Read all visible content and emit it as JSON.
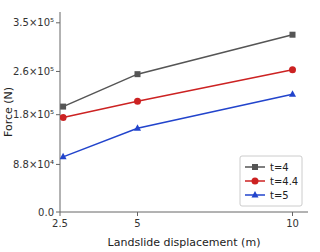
{
  "chart_data": {
    "type": "line",
    "x": [
      2.6,
      5,
      10
    ],
    "series": [
      {
        "name": "t=4",
        "color": "#555555",
        "marker": "square",
        "values": [
          195000,
          255000,
          328000
        ]
      },
      {
        "name": "t=4.4",
        "color": "#cc2222",
        "marker": "circle",
        "values": [
          175000,
          205000,
          263000
        ]
      },
      {
        "name": "t=5",
        "color": "#2244cc",
        "marker": "triangle",
        "values": [
          102000,
          155000,
          218000
        ]
      }
    ],
    "xlabel": "Landslide displacement (m)",
    "ylabel": "Force (N)",
    "xlim": [
      2.5,
      10.5
    ],
    "ylim": [
      0.0,
      370000
    ],
    "xticks": [
      2.5,
      5,
      10
    ],
    "yticks": [
      {
        "value": 0,
        "label": "0.0"
      },
      {
        "value": 88000,
        "label": "8.8×10⁴"
      },
      {
        "value": 180000,
        "label": "1.8×10⁵"
      },
      {
        "value": 260000,
        "label": "2.6×10⁵"
      },
      {
        "value": 350000,
        "label": "3.5×10⁵"
      }
    ],
    "legend": "lower right",
    "grid": false
  }
}
